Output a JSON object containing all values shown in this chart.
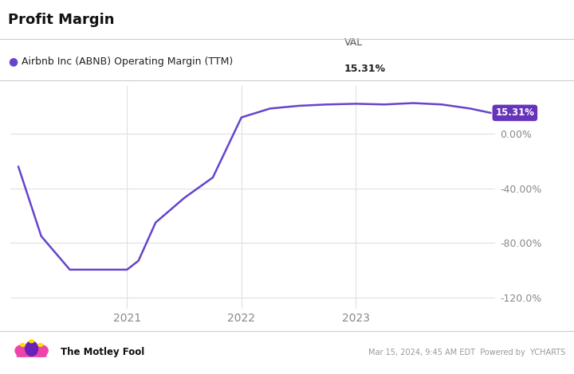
{
  "title": "Profit Margin",
  "series_label": "Airbnb Inc (ABNB) Operating Margin (TTM)",
  "val_label": "VAL",
  "val_value": "15.31%",
  "line_color": "#6644cc",
  "label_box_color": "#6633bb",
  "label_text_color": "#ffffff",
  "background_color": "#ffffff",
  "plot_bg_color": "#ffffff",
  "grid_color": "#e0e0e0",
  "x_data": [
    2020.05,
    2020.25,
    2020.5,
    2020.75,
    2021.0,
    2021.1,
    2021.25,
    2021.5,
    2021.75,
    2022.0,
    2022.25,
    2022.5,
    2022.75,
    2023.0,
    2023.25,
    2023.5,
    2023.75,
    2024.0,
    2024.18
  ],
  "y_data": [
    -24.0,
    -75.0,
    -99.5,
    -99.5,
    -99.5,
    -93.0,
    -65.0,
    -47.0,
    -32.0,
    12.0,
    18.5,
    20.5,
    21.5,
    22.0,
    21.5,
    22.5,
    21.5,
    18.5,
    15.31
  ],
  "yticks": [
    0.0,
    -40.0,
    -80.0,
    -120.0
  ],
  "ytick_labels": [
    "0.00%",
    "-40.00%",
    "-80.00%",
    "-120.0%"
  ],
  "xtick_positions": [
    2021.0,
    2022.0,
    2023.0
  ],
  "xtick_labels": [
    "2021",
    "2022",
    "2023"
  ],
  "ylim": [
    -128,
    35
  ],
  "xlim_left": 2019.98,
  "xlim_right": 2024.22,
  "footer_right": "Mar 15, 2024, 9:45 AM EDT  Powered by  YCHARTS",
  "title_fontsize": 13,
  "axis_fontsize": 9,
  "legend_fontsize": 9
}
